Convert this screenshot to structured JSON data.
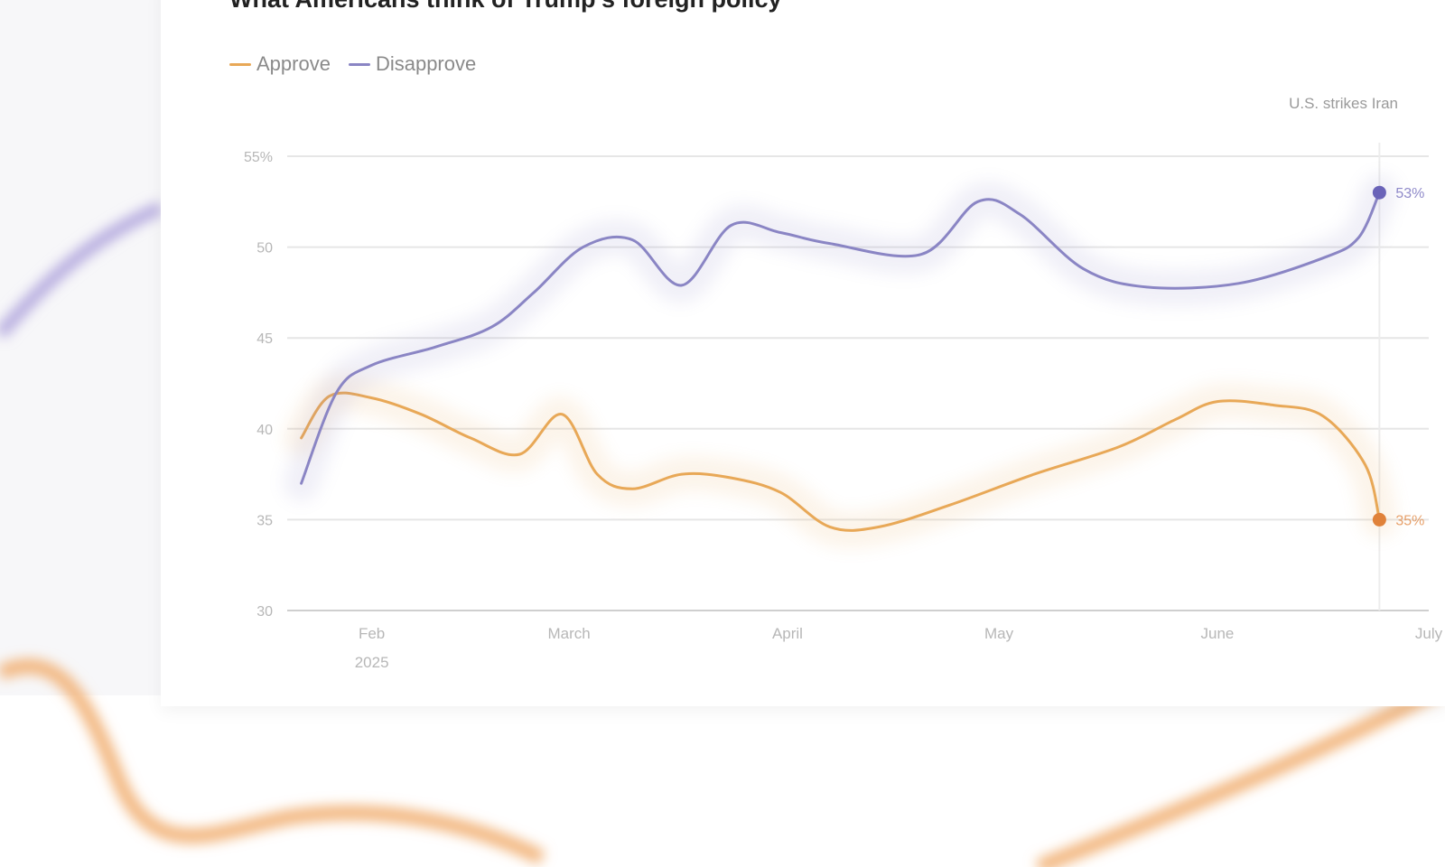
{
  "chart_data": {
    "type": "line",
    "title": "What Americans think of Trump's foreign policy",
    "yticks": [
      {
        "value": 55,
        "label": "55%"
      },
      {
        "value": 50,
        "label": "50"
      },
      {
        "value": 45,
        "label": "45"
      },
      {
        "value": 40,
        "label": "40"
      },
      {
        "value": 35,
        "label": "35"
      },
      {
        "value": 30,
        "label": "30"
      }
    ],
    "ylim": [
      30,
      55
    ],
    "xlim": [
      "2025-01-20",
      "2025-07-01"
    ],
    "xticks": [
      {
        "date": "2025-02-01",
        "label": "Feb",
        "sublabel": "2025"
      },
      {
        "date": "2025-03-01",
        "label": "March",
        "sublabel": ""
      },
      {
        "date": "2025-04-01",
        "label": "April",
        "sublabel": ""
      },
      {
        "date": "2025-05-01",
        "label": "May",
        "sublabel": ""
      },
      {
        "date": "2025-06-01",
        "label": "June",
        "sublabel": ""
      },
      {
        "date": "2025-07-01",
        "label": "July",
        "sublabel": ""
      }
    ],
    "legend_position": "top-left",
    "grid": true,
    "annotation": {
      "date": "2025-06-24",
      "label": "U.S. strikes Iran"
    },
    "series": [
      {
        "name": "Approve",
        "color": "#e8a857",
        "end_label": "35%",
        "end_color": "#e0823a",
        "points": [
          [
            "2025-01-22",
            39.5
          ],
          [
            "2025-01-26",
            41.8
          ],
          [
            "2025-02-01",
            41.7
          ],
          [
            "2025-02-08",
            40.8
          ],
          [
            "2025-02-15",
            39.5
          ],
          [
            "2025-02-22",
            38.6
          ],
          [
            "2025-02-28",
            40.8
          ],
          [
            "2025-03-05",
            37.5
          ],
          [
            "2025-03-10",
            36.7
          ],
          [
            "2025-03-17",
            37.5
          ],
          [
            "2025-03-24",
            37.3
          ],
          [
            "2025-03-31",
            36.5
          ],
          [
            "2025-04-07",
            34.6
          ],
          [
            "2025-04-14",
            34.6
          ],
          [
            "2025-04-24",
            35.8
          ],
          [
            "2025-05-06",
            37.5
          ],
          [
            "2025-05-18",
            39.0
          ],
          [
            "2025-05-26",
            40.5
          ],
          [
            "2025-06-01",
            41.5
          ],
          [
            "2025-06-09",
            41.3
          ],
          [
            "2025-06-16",
            40.7
          ],
          [
            "2025-06-22",
            38.0
          ],
          [
            "2025-06-24",
            35.0
          ]
        ]
      },
      {
        "name": "Disapprove",
        "color": "#8a85c4",
        "end_label": "53%",
        "end_color": "#6a63b8",
        "points": [
          [
            "2025-01-22",
            37.0
          ],
          [
            "2025-01-27",
            42.0
          ],
          [
            "2025-02-01",
            43.5
          ],
          [
            "2025-02-10",
            44.5
          ],
          [
            "2025-02-18",
            45.6
          ],
          [
            "2025-02-24",
            47.5
          ],
          [
            "2025-03-03",
            50.0
          ],
          [
            "2025-03-10",
            50.4
          ],
          [
            "2025-03-17",
            47.9
          ],
          [
            "2025-03-24",
            51.2
          ],
          [
            "2025-03-31",
            50.8
          ],
          [
            "2025-04-07",
            50.2
          ],
          [
            "2025-04-20",
            49.6
          ],
          [
            "2025-04-28",
            52.5
          ],
          [
            "2025-05-04",
            51.8
          ],
          [
            "2025-05-13",
            48.8
          ],
          [
            "2025-05-22",
            47.8
          ],
          [
            "2025-06-04",
            48.0
          ],
          [
            "2025-06-16",
            49.4
          ],
          [
            "2025-06-21",
            50.5
          ],
          [
            "2025-06-24",
            53.0
          ]
        ]
      }
    ]
  }
}
